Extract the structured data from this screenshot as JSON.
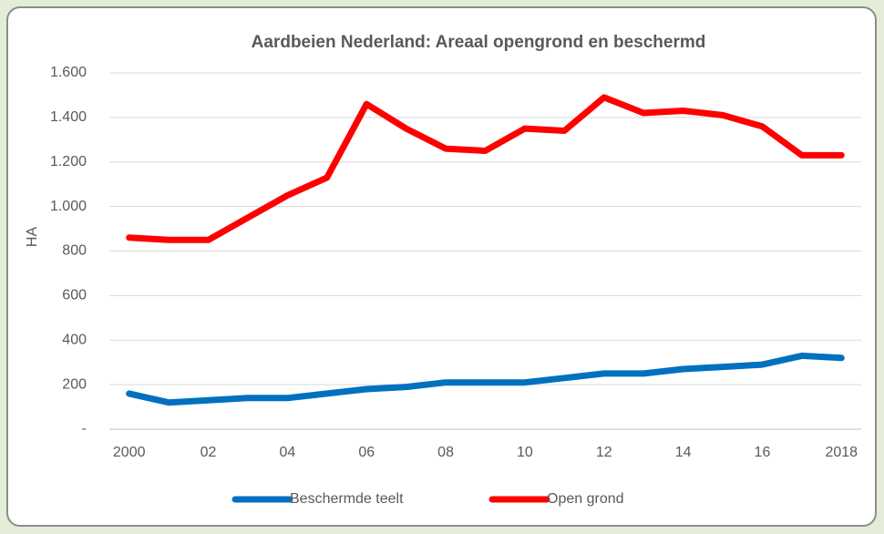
{
  "chart_data": {
    "type": "line",
    "title": "Aardbeien Nederland: Areaal  opengrond en beschermd",
    "y_label": "HA",
    "categories": [
      "2000",
      null,
      "02",
      null,
      "04",
      null,
      "06",
      null,
      "08",
      null,
      "10",
      null,
      "12",
      null,
      "14",
      null,
      "16",
      null,
      "2018"
    ],
    "series": [
      {
        "name": "Beschermde teelt",
        "color": "#0070c0",
        "values": [
          160,
          120,
          130,
          140,
          140,
          160,
          180,
          190,
          210,
          210,
          210,
          230,
          250,
          250,
          270,
          280,
          290,
          330,
          320
        ]
      },
      {
        "name": "Open grond",
        "color": "#ff0000",
        "values": [
          860,
          850,
          850,
          950,
          1050,
          1130,
          1460,
          1350,
          1260,
          1250,
          1350,
          1340,
          1490,
          1420,
          1430,
          1410,
          1360,
          1230,
          1230
        ]
      }
    ],
    "ylim": [
      0,
      1600
    ],
    "yticks": [
      {
        "value": 0,
        "label": "-"
      },
      200,
      400,
      600,
      800,
      {
        "value": 1000,
        "label": "1.000"
      },
      {
        "value": 1200,
        "label": "1.200"
      },
      {
        "value": 1400,
        "label": "1.400"
      },
      {
        "value": 1600,
        "label": "1.600"
      }
    ],
    "grid": true,
    "legend": "bottom"
  }
}
